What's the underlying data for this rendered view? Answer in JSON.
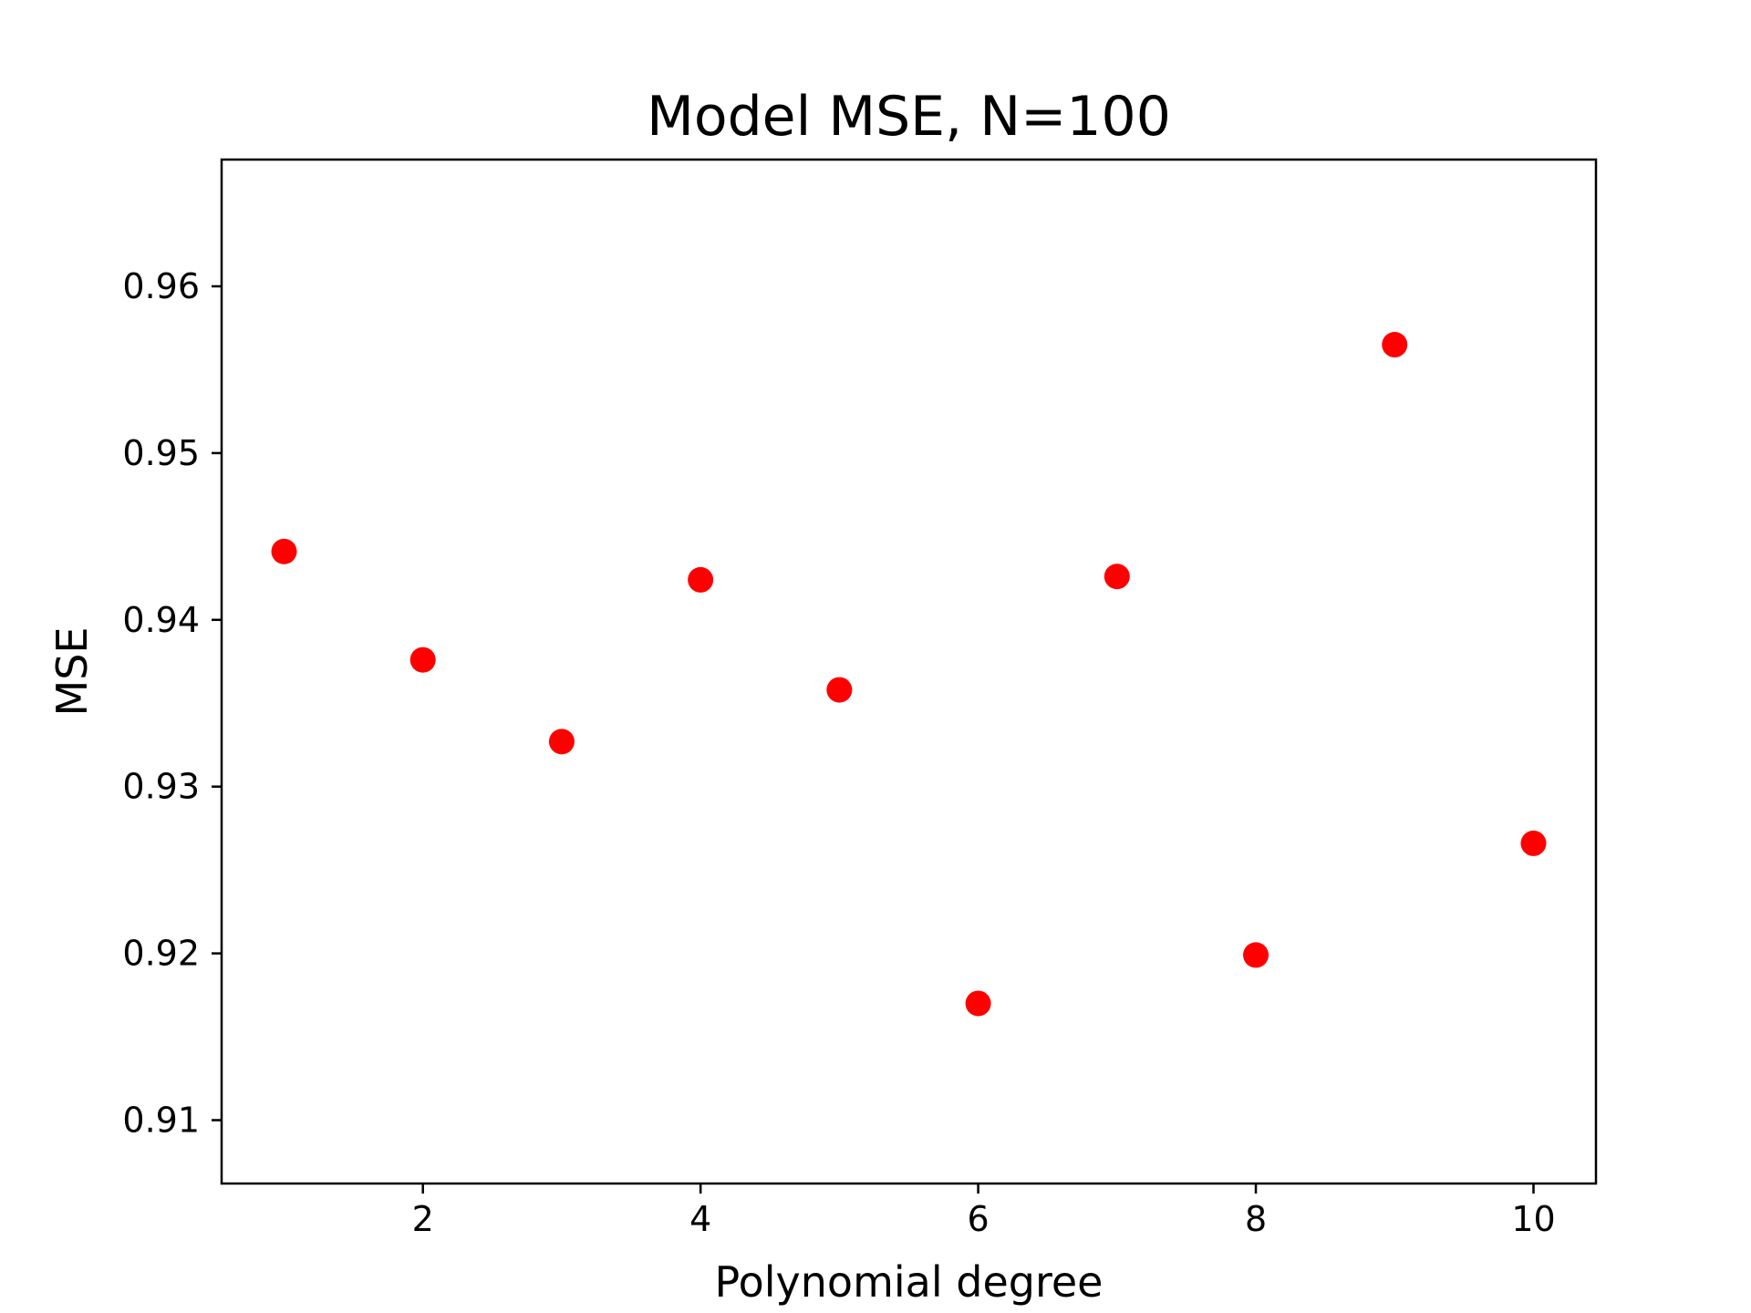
{
  "chart_data": {
    "type": "scatter",
    "title": "Model MSE, N=100",
    "xlabel": "Polynomial degree",
    "ylabel": "MSE",
    "xlim": [
      0.55,
      10.45
    ],
    "ylim": [
      0.9062,
      0.9676
    ],
    "xticks": [
      2,
      4,
      6,
      8,
      10
    ],
    "xtick_labels": [
      "2",
      "4",
      "6",
      "8",
      "10"
    ],
    "yticks": [
      0.91,
      0.92,
      0.93,
      0.94,
      0.95,
      0.96
    ],
    "ytick_labels": [
      "0.91",
      "0.92",
      "0.93",
      "0.94",
      "0.95",
      "0.96"
    ],
    "grid": false,
    "legend": false,
    "series": [
      {
        "color": "#ff0000",
        "marker": "circle",
        "x": [
          1,
          2,
          3,
          4,
          5,
          6,
          7,
          8,
          9,
          10
        ],
        "y": [
          0.9441,
          0.9376,
          0.9327,
          0.9424,
          0.9358,
          0.917,
          0.9426,
          0.9199,
          0.9565,
          0.9266
        ]
      }
    ]
  }
}
